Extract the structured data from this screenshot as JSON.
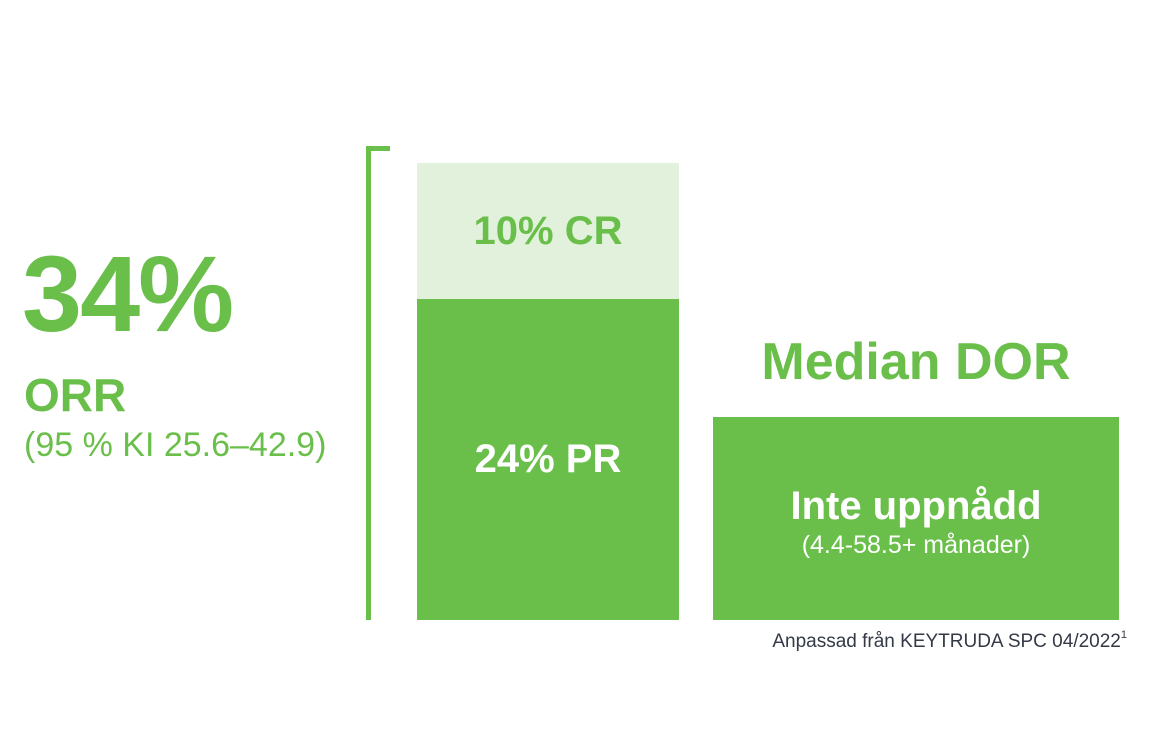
{
  "orr": {
    "value": "34%",
    "label": "ORR",
    "ci": "(95 % KI 25.6–42.9)"
  },
  "dor": {
    "title": "Median DOR",
    "value": "Inte uppnådd",
    "range": "(4.4-58.5+ månader)"
  },
  "source": {
    "text": "Anpassad från KEYTRUDA SPC 04/2022",
    "superscript": "1"
  },
  "colors": {
    "accent": "#6abf4b",
    "light": "#e1f1dc",
    "source_text": "#333a46"
  },
  "chart_data": {
    "type": "bar",
    "categories": [
      "ORR"
    ],
    "series": [
      {
        "name": "PR",
        "values": [
          24
        ],
        "label": "24% PR"
      },
      {
        "name": "CR",
        "values": [
          10
        ],
        "label": "10% CR"
      }
    ],
    "stacked": true,
    "total": 34,
    "ylim": [
      0,
      34
    ],
    "grid": false
  }
}
